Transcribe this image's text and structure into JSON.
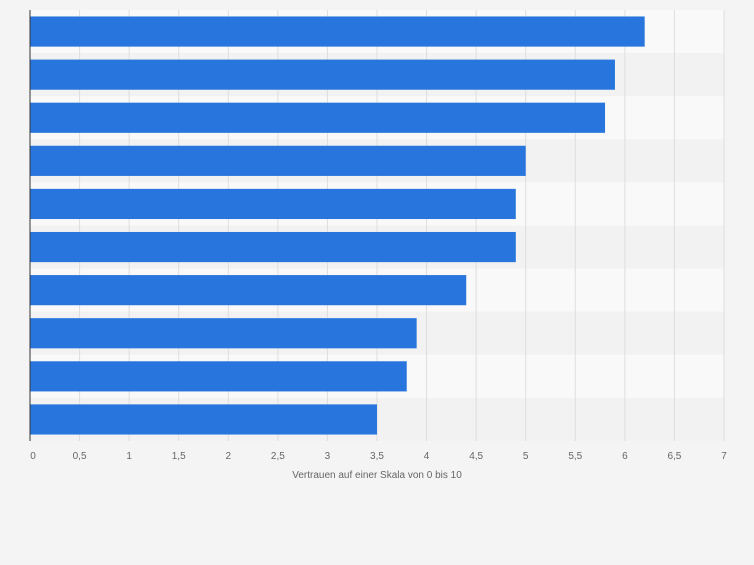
{
  "chart_data": {
    "type": "bar",
    "orientation": "horizontal",
    "categories": [
      "",
      "",
      "",
      "",
      "",
      "",
      "",
      "",
      "",
      ""
    ],
    "values": [
      6.2,
      5.9,
      5.8,
      5.0,
      4.9,
      4.9,
      4.4,
      3.9,
      3.8,
      3.5
    ],
    "xlabel": "Vertrauen auf einer Skala von 0 bis 10",
    "ylabel": "",
    "xlim": [
      0,
      7
    ],
    "xticks": [
      0,
      0.5,
      1,
      1.5,
      2,
      2.5,
      3,
      3.5,
      4,
      4.5,
      5,
      5.5,
      6,
      6.5,
      7
    ],
    "xtick_labels": [
      "0",
      "0,5",
      "1",
      "1,5",
      "2",
      "2,5",
      "3",
      "3,5",
      "4",
      "4,5",
      "5",
      "5,5",
      "6",
      "6,5",
      "7"
    ],
    "grid": true,
    "legend": "none",
    "colors": {
      "bar": "#2876dd",
      "band_light": "#f9f9f9",
      "band_dark": "#f2f2f2",
      "grid": "#dedede",
      "axis": "#333333",
      "text": "#666666",
      "background": "#f4f4f4"
    }
  }
}
